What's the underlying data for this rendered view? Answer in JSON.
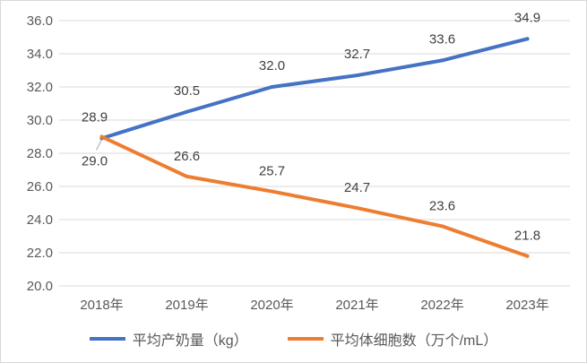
{
  "chart_data": {
    "type": "line",
    "title": "",
    "xlabel": "",
    "ylabel": "",
    "categories": [
      "2018年",
      "2019年",
      "2020年",
      "2021年",
      "2022年",
      "2023年"
    ],
    "ylim": [
      20.0,
      36.0
    ],
    "yticks": [
      "20.0",
      "22.0",
      "24.0",
      "26.0",
      "28.0",
      "30.0",
      "32.0",
      "34.0",
      "36.0"
    ],
    "grid": true,
    "legend_position": "bottom",
    "series": [
      {
        "name": "平均产奶量（kg）",
        "color": "#4472c4",
        "values": [
          28.9,
          30.5,
          32.0,
          32.7,
          33.6,
          34.9
        ],
        "labels": [
          "28.9",
          "30.5",
          "32.0",
          "32.7",
          "33.6",
          "34.9"
        ]
      },
      {
        "name": "平均体细胞数（万个/mL）",
        "color": "#ed7d31",
        "values": [
          29.0,
          26.6,
          25.7,
          24.7,
          23.6,
          21.8
        ],
        "labels": [
          "29.0",
          "26.6",
          "25.7",
          "24.7",
          "23.6",
          "21.8"
        ]
      }
    ]
  }
}
